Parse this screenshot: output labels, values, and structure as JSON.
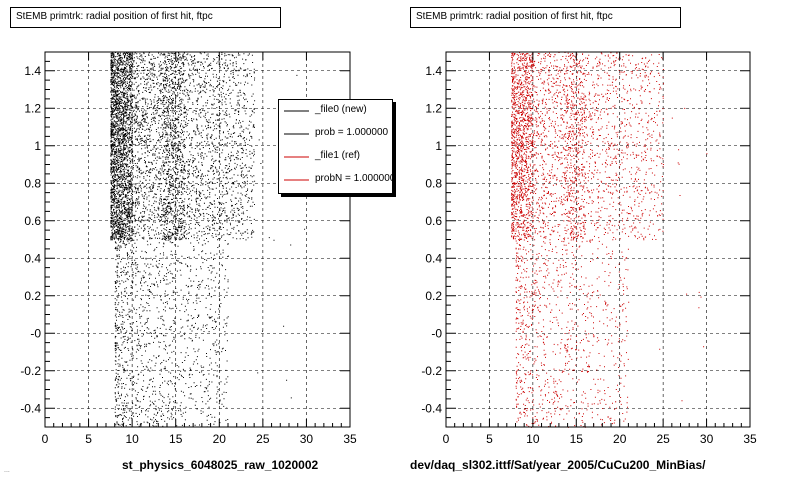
{
  "left_panel": {
    "title": "StEMB primtrk: radial position of first hit, ftpc",
    "xlabel": "st_physics_6048025_raw_1020002",
    "legend": [
      {
        "label": "_file0 (new)",
        "color": "#000000"
      },
      {
        "label": "prob = 1.000000",
        "color": "#000000"
      },
      {
        "label": "_file1 (ref)",
        "color": "#cc0000"
      },
      {
        "label": "probN = 1.000000",
        "color": "#cc0000"
      }
    ]
  },
  "right_panel": {
    "title": "StEMB primtrk: radial position of first hit, ftpc",
    "xlabel": "dev/daq_sl302.ittf/Sat/year_2005/CuCu200_MinBias/"
  },
  "footer_stamp": "...",
  "chart_data": [
    {
      "type": "scatter",
      "title": "StEMB primtrk: radial position of first hit, ftpc",
      "xlabel": "st_physics_6048025_raw_1020002",
      "ylabel": "",
      "xlim": [
        0,
        35
      ],
      "ylim": [
        -0.5,
        1.5
      ],
      "xticks": [
        0,
        5,
        10,
        15,
        20,
        25,
        30,
        35
      ],
      "yticks": [
        "-0.4",
        "-0.2",
        "-0",
        "0.2",
        "0.4",
        "0.6",
        "0.8",
        "1",
        "1.2",
        "1.4"
      ],
      "grid": true,
      "marker_color": "#000000",
      "density_bands": [
        {
          "x": [
            7.5,
            24
          ],
          "y": [
            0.5,
            1.5
          ],
          "weight": 0.55
        },
        {
          "x": [
            7.5,
            10
          ],
          "y": [
            0.5,
            1.5
          ],
          "weight": 0.18
        },
        {
          "x": [
            13.5,
            16
          ],
          "y": [
            0.5,
            1.5
          ],
          "weight": 0.08
        },
        {
          "x": [
            8,
            21
          ],
          "y": [
            -0.5,
            0.5
          ],
          "weight": 0.19
        }
      ],
      "legend": "top-right"
    },
    {
      "type": "scatter",
      "title": "StEMB primtrk: radial position of first hit, ftpc",
      "xlabel": "dev/daq_sl302.ittf/Sat/year_2005/CuCu200_MinBias/",
      "ylabel": "",
      "xlim": [
        0,
        35
      ],
      "ylim": [
        -0.5,
        1.5
      ],
      "xticks": [
        0,
        5,
        10,
        15,
        20,
        25,
        30,
        35
      ],
      "yticks": [
        "-0.4",
        "-0.2",
        "-0",
        "0.2",
        "0.4",
        "0.6",
        "0.8",
        "1",
        "1.2",
        "1.4"
      ],
      "grid": true,
      "marker_color": "#cc0000",
      "density_bands": [
        {
          "x": [
            7.5,
            25
          ],
          "y": [
            0.5,
            1.5
          ],
          "weight": 0.55
        },
        {
          "x": [
            7.5,
            10
          ],
          "y": [
            0.5,
            1.5
          ],
          "weight": 0.15
        },
        {
          "x": [
            13.5,
            16
          ],
          "y": [
            0.5,
            1.5
          ],
          "weight": 0.08
        },
        {
          "x": [
            8,
            21
          ],
          "y": [
            -0.5,
            0.5
          ],
          "weight": 0.22
        }
      ]
    }
  ]
}
